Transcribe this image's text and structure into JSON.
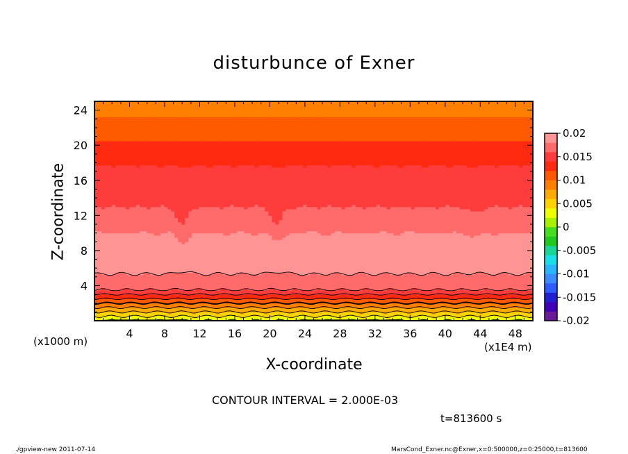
{
  "chart_data": {
    "type": "heatmap",
    "title": "disturbunce of Exner",
    "xlabel": "X-coordinate",
    "ylabel": "Z-coordinate",
    "x_unit_label": "(x1E4 m)",
    "y_unit_label": "(x1000 m)",
    "xlim": [
      0,
      50
    ],
    "ylim": [
      0,
      25
    ],
    "x_ticks": [
      4,
      8,
      12,
      16,
      20,
      24,
      28,
      32,
      36,
      40,
      44,
      48
    ],
    "y_ticks": [
      4,
      8,
      12,
      16,
      20,
      24
    ],
    "colorbar": {
      "ticks": [
        "0.02",
        "0.015",
        "0.01",
        "0.005",
        "0",
        "-0.005",
        "-0.01",
        "-0.015",
        "-0.02"
      ],
      "range": [
        -0.02,
        0.02
      ]
    },
    "contour_interval_text": "CONTOUR INTERVAL = 2.000E-03",
    "time_text": "t=813600 s",
    "field_profile": {
      "z": [
        0,
        0.5,
        1,
        1.5,
        2,
        2.5,
        3,
        3.5,
        4,
        5,
        6,
        7,
        8,
        9,
        10,
        11,
        12,
        13,
        14,
        16,
        18,
        20,
        22,
        24,
        25
      ],
      "value": [
        0.002,
        0.004,
        0.006,
        0.008,
        0.01,
        0.012,
        0.014,
        0.016,
        0.017,
        0.0175,
        0.019,
        0.0195,
        0.0198,
        0.0192,
        0.018,
        0.0172,
        0.0165,
        0.016,
        0.0155,
        0.015,
        0.0138,
        0.0125,
        0.0108,
        0.0095,
        0.0085
      ]
    },
    "dips_at_x": [
      10,
      20.8,
      43.5
    ]
  },
  "footer": {
    "left": "./gpview-new  2011-07-14",
    "right": "MarsCond_Exner.nc@Exner,x=0:500000,z=0:25000,t=813600"
  }
}
